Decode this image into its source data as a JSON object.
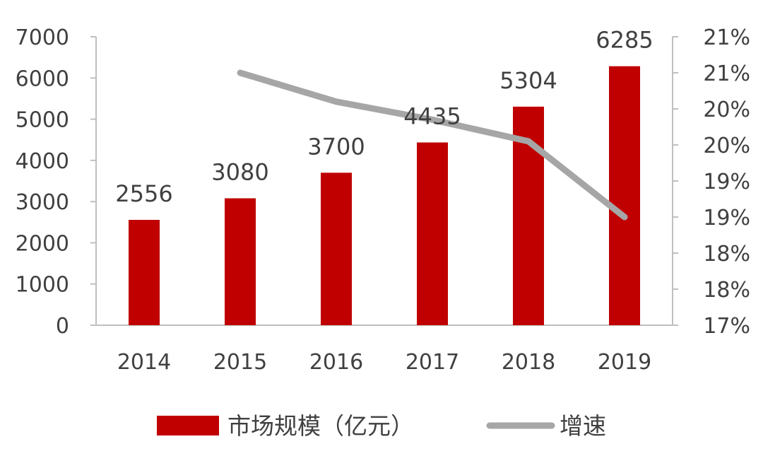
{
  "chart_data": {
    "type": "bar",
    "categories": [
      "2014",
      "2015",
      "2016",
      "2017",
      "2018",
      "2019"
    ],
    "series": [
      {
        "name": "市场规模（亿元）",
        "kind": "bar",
        "axis": "left",
        "color": "#C00000",
        "values": [
          2556,
          3080,
          3700,
          4435,
          5304,
          6285
        ],
        "labels": [
          "2556",
          "3080",
          "3700",
          "4435",
          "5304",
          "6285"
        ]
      },
      {
        "name": "增速",
        "kind": "line",
        "axis": "right",
        "color": "#A6A6A6",
        "values": [
          null,
          20.5,
          20.1,
          19.85,
          19.55,
          18.5
        ]
      }
    ],
    "y_left": {
      "min": 0,
      "max": 7000,
      "step": 1000,
      "ticks": [
        "0",
        "1000",
        "2000",
        "3000",
        "4000",
        "5000",
        "6000",
        "7000"
      ]
    },
    "y_right": {
      "min": 17,
      "max": 21,
      "step": 0.5,
      "ticks": [
        "17%",
        "18%",
        "18%",
        "19%",
        "19%",
        "20%",
        "20%",
        "21%",
        "21%"
      ]
    },
    "title": "",
    "xlabel": "",
    "legend": "bottom"
  }
}
